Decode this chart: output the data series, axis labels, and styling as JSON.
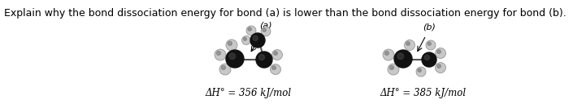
{
  "question_text": "Explain why the bond dissociation energy for bond (a) is lower than the bond dissociation energy for bond (b).",
  "label_a": "(a)",
  "label_b": "(b)",
  "energy_a": "ΔH° = 356 kJ/mol",
  "energy_b": "ΔH° = 385 kJ/mol",
  "question_fontsize": 9.0,
  "label_fontsize": 8.0,
  "energy_fontsize": 8.5,
  "bg_color": "#ffffff",
  "text_color": "#000000",
  "carbon_dark": "#111111",
  "carbon_mid": "#444444",
  "hydrogen_color": "#cccccc",
  "hydrogen_edge": "#888888"
}
